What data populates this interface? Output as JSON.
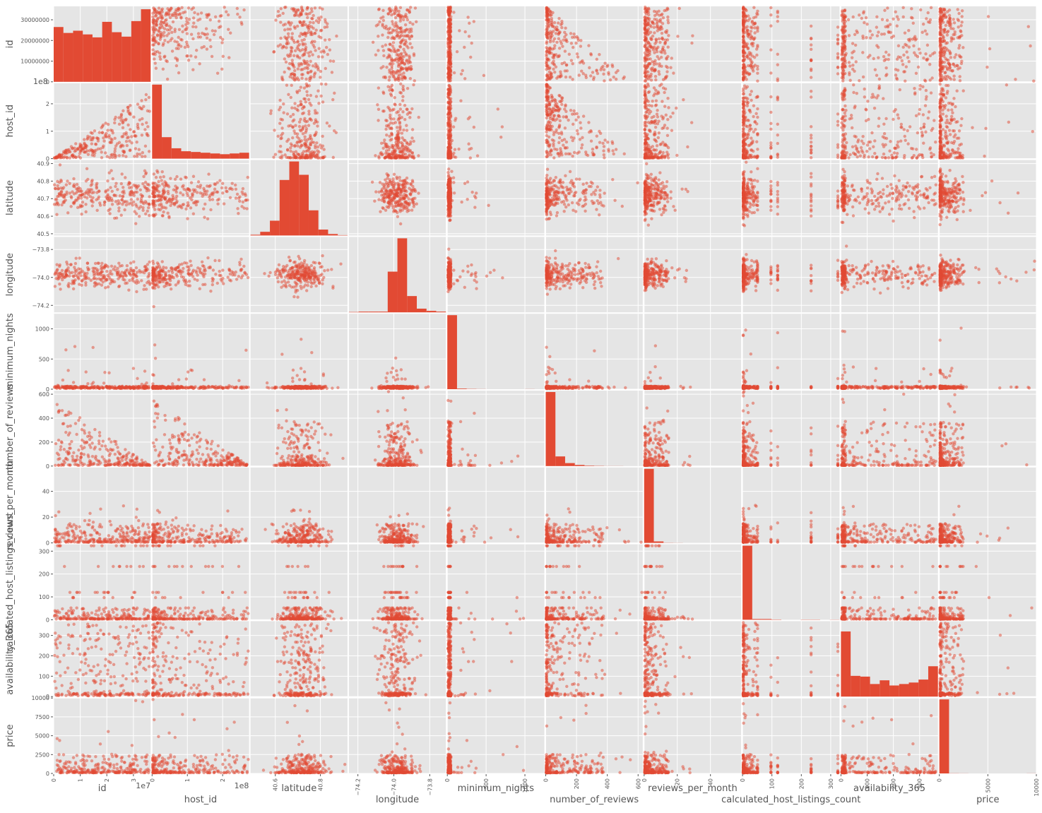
{
  "chart_data": {
    "type": "scatter",
    "title": "",
    "variables": [
      "id",
      "host_id",
      "latitude",
      "longitude",
      "minimum_nights",
      "number_of_reviews",
      "reviews_per_month",
      "calculated_host_listings_count",
      "availability_365",
      "price"
    ],
    "ranges": {
      "id": [
        0,
        36500000
      ],
      "host_id": [
        0,
        275000000
      ],
      "latitude": [
        40.49,
        40.92
      ],
      "longitude": [
        -74.25,
        -73.71
      ],
      "minimum_nights": [
        0,
        1250
      ],
      "number_of_reviews": [
        0,
        630
      ],
      "reviews_per_month": [
        0,
        58.5
      ],
      "calculated_host_listings_count": [
        0,
        330
      ],
      "availability_365": [
        0,
        370
      ],
      "price": [
        0,
        10000
      ]
    },
    "y_ticks": {
      "id": [
        "0",
        "10000000",
        "20000000",
        "30000000"
      ],
      "host_id": [
        "0",
        "1",
        "2"
      ],
      "latitude": [
        "40.5",
        "40.6",
        "40.7",
        "40.8",
        "40.9"
      ],
      "longitude": [
        "−74.2",
        "−74.0",
        "−73.8"
      ],
      "minimum_nights": [
        "0",
        "500",
        "1000"
      ],
      "number_of_reviews": [
        "0",
        "200",
        "400",
        "600"
      ],
      "reviews_per_month": [
        "0",
        "20",
        "40"
      ],
      "calculated_host_listings_count": [
        "0",
        "100",
        "200",
        "300"
      ],
      "availability_365": [
        "0",
        "100",
        "200",
        "300"
      ],
      "price": [
        "0",
        "2500",
        "5000",
        "7500",
        "10000"
      ]
    },
    "x_ticks": {
      "id": [
        "0",
        "1",
        "2",
        "3"
      ],
      "host_id": [
        "0",
        "1",
        "2"
      ],
      "latitude": [
        "40.6",
        "40.8"
      ],
      "longitude": [
        "−74.2",
        "−74.0",
        "−73.8"
      ],
      "minimum_nights": [
        "0",
        "500",
        "1000"
      ],
      "number_of_reviews": [
        "0",
        "200",
        "400",
        "600"
      ],
      "reviews_per_month": [
        "0",
        "20",
        "40"
      ],
      "calculated_host_listings_count": [
        "0",
        "100",
        "200",
        "300"
      ],
      "availability_365": [
        "0",
        "100",
        "200",
        "300"
      ],
      "price": [
        "0",
        "5000",
        "10000"
      ]
    },
    "offset_labels": {
      "id_x": "1e7",
      "host_id_x": "1e8",
      "host_id_y": "1e8"
    },
    "histograms": {
      "id": [
        0.74,
        0.66,
        0.69,
        0.64,
        0.6,
        0.81,
        0.67,
        0.61,
        0.82,
        0.98
      ],
      "host_id": [
        1.0,
        0.29,
        0.14,
        0.1,
        0.09,
        0.08,
        0.07,
        0.06,
        0.07,
        0.08
      ],
      "latitude": [
        0.01,
        0.05,
        0.2,
        0.75,
        1.0,
        0.82,
        0.34,
        0.08,
        0.02,
        0.005
      ],
      "longitude": [
        0.005,
        0.01,
        0.01,
        0.01,
        0.55,
        1.0,
        0.22,
        0.05,
        0.02,
        0.01
      ],
      "minimum_nights": [
        1.0,
        0.008,
        0.003,
        0.001,
        0,
        0,
        0,
        0,
        0.001,
        0
      ],
      "number_of_reviews": [
        1.0,
        0.13,
        0.04,
        0.015,
        0.006,
        0.003,
        0.001,
        0.001,
        0,
        0
      ],
      "reviews_per_month": [
        1.0,
        0.02,
        0.002,
        0.001,
        0,
        0,
        0,
        0,
        0,
        0
      ],
      "calculated_host_listings_count": [
        1.0,
        0.01,
        0.01,
        0.004,
        0,
        0,
        0.003,
        0.003,
        0,
        0.002
      ],
      "availability_365": [
        0.88,
        0.28,
        0.27,
        0.17,
        0.22,
        0.15,
        0.17,
        0.19,
        0.23,
        0.41
      ],
      "price": [
        1.0,
        0.002,
        0.001,
        0,
        0,
        0,
        0,
        0,
        0,
        0.001
      ]
    },
    "series_color": "#E24A33",
    "panel_background": "#E5E5E5",
    "grid": true,
    "grid_color": "#ffffff",
    "label_color": "#555555",
    "point_alpha": 0.5
  }
}
